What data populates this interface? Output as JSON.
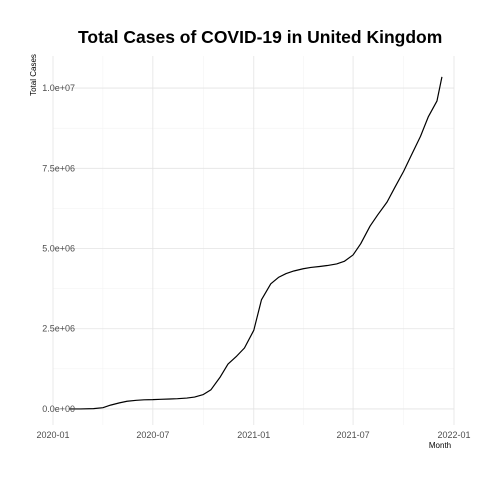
{
  "chart_data": {
    "type": "line",
    "title": "Total Cases of COVID-19 in United Kingdom",
    "xlabel": "Month",
    "ylabel": "Total Cases",
    "x_ticks": [
      "2020-01",
      "2020-07",
      "2021-01",
      "2021-07",
      "2022-01"
    ],
    "y_ticks": [
      "0.0e+00",
      "2.5e+06",
      "5.0e+06",
      "7.5e+06",
      "1.0e+07"
    ],
    "y_tick_values": [
      0,
      2500000,
      5000000,
      7500000,
      10000000
    ],
    "xlim": [
      "2020-01-01",
      "2022-01-01"
    ],
    "ylim": [
      -500000,
      11000000
    ],
    "grid": true,
    "series": [
      {
        "color": "#000000",
        "x": [
          "2020-01-31",
          "2020-02-20",
          "2020-03-15",
          "2020-04-01",
          "2020-04-15",
          "2020-05-01",
          "2020-05-15",
          "2020-06-01",
          "2020-06-15",
          "2020-07-01",
          "2020-07-15",
          "2020-08-01",
          "2020-08-15",
          "2020-09-01",
          "2020-09-15",
          "2020-10-01",
          "2020-10-15",
          "2020-11-01",
          "2020-11-15",
          "2020-12-01",
          "2020-12-15",
          "2021-01-01",
          "2021-01-15",
          "2021-02-01",
          "2021-02-15",
          "2021-03-01",
          "2021-03-15",
          "2021-04-01",
          "2021-04-15",
          "2021-05-01",
          "2021-05-15",
          "2021-06-01",
          "2021-06-15",
          "2021-07-01",
          "2021-07-15",
          "2021-08-01",
          "2021-08-15",
          "2021-09-01",
          "2021-09-15",
          "2021-10-01",
          "2021-10-15",
          "2021-11-01",
          "2021-11-15",
          "2021-12-01",
          "2021-12-10"
        ],
        "values": [
          0,
          0,
          10000,
          40000,
          120000,
          190000,
          240000,
          270000,
          285000,
          290000,
          300000,
          310000,
          320000,
          340000,
          370000,
          450000,
          600000,
          1000000,
          1400000,
          1650000,
          1900000,
          2450000,
          3400000,
          3900000,
          4100000,
          4220000,
          4300000,
          4370000,
          4410000,
          4440000,
          4470000,
          4520000,
          4600000,
          4800000,
          5150000,
          5700000,
          6050000,
          6450000,
          6900000,
          7400000,
          7900000,
          8500000,
          9100000,
          9600000,
          10350000
        ]
      }
    ]
  }
}
